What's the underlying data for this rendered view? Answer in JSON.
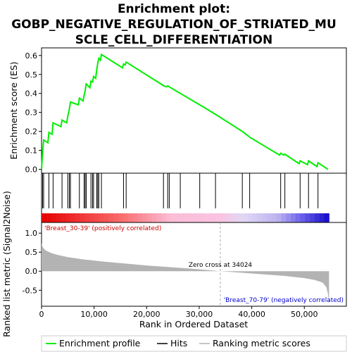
{
  "chart_data": {
    "type": "line",
    "title_lines": [
      "Enrichment plot:",
      "GOBP_NEGATIVE_REGULATION_OF_STRIATED_MU",
      "SCLE_CELL_DIFFERENTIATION"
    ],
    "top_panel": {
      "ylabel": "Enrichment score (ES)",
      "ylim": [
        -0.02,
        0.64
      ],
      "yticks": [
        0.0,
        0.1,
        0.2,
        0.3,
        0.4,
        0.5,
        0.6
      ],
      "ytick_labels": [
        "0.0",
        "0.1",
        "0.2",
        "0.3",
        "0.4",
        "0.5",
        "0.6"
      ],
      "series": [
        {
          "name": "Enrichment profile",
          "color": "#00ee00",
          "x": [
            0,
            200,
            400,
            1200,
            1400,
            2000,
            2200,
            3700,
            3900,
            4800,
            5000,
            5300,
            5500,
            7000,
            7200,
            7900,
            8100,
            8300,
            8500,
            9200,
            9400,
            9700,
            9900,
            10300,
            10500,
            10700,
            10900,
            11200,
            11400,
            15400,
            15600,
            15900,
            16100,
            23000,
            23200,
            23800,
            24000,
            24300,
            26400,
            30100,
            33100,
            38200,
            39400,
            39600,
            45300,
            45500,
            46100,
            46300,
            49000,
            49200,
            50600,
            50800,
            52400,
            52600,
            54500
          ],
          "y": [
            0.0,
            0.09,
            0.155,
            0.14,
            0.195,
            0.185,
            0.245,
            0.225,
            0.26,
            0.245,
            0.28,
            0.32,
            0.355,
            0.34,
            0.375,
            0.36,
            0.39,
            0.415,
            0.45,
            0.43,
            0.465,
            0.46,
            0.49,
            0.48,
            0.525,
            0.56,
            0.585,
            0.575,
            0.605,
            0.535,
            0.555,
            0.55,
            0.565,
            0.445,
            0.44,
            0.435,
            0.44,
            0.435,
            0.4,
            0.34,
            0.29,
            0.2,
            0.175,
            0.17,
            0.075,
            0.085,
            0.075,
            0.08,
            0.03,
            0.045,
            0.025,
            0.045,
            0.015,
            0.035,
            0.0
          ]
        }
      ]
    },
    "hits_panel": {
      "hit_positions": [
        200,
        400,
        1400,
        2200,
        3900,
        5000,
        5300,
        5500,
        7200,
        8100,
        8300,
        8500,
        9400,
        9700,
        9900,
        10500,
        10700,
        10900,
        11400,
        15600,
        16100,
        23200,
        24000,
        24300,
        26400,
        30100,
        33100,
        38200,
        39600,
        45500,
        46300,
        49200,
        50800,
        52600
      ]
    },
    "bottom_panel": {
      "ylabel": "Ranked list metric (Signal2Noise)",
      "xlabel": "Rank in Ordered Dataset",
      "xlim": [
        0,
        58000
      ],
      "xticks": [
        0,
        10000,
        20000,
        30000,
        40000,
        50000
      ],
      "xtick_labels": [
        "0",
        "10,000",
        "20,000",
        "30,000",
        "40,000",
        "50,000"
      ],
      "ylim": [
        -0.92,
        1.28
      ],
      "yticks": [
        1.0,
        0.5,
        0.0,
        -0.5
      ],
      "ytick_labels": [
        "1.0",
        "0.5",
        "0.0",
        "-0.5"
      ],
      "metric_x": [
        0,
        100,
        300,
        600,
        1000,
        2000,
        3000,
        5000,
        8000,
        12000,
        16000,
        20000,
        25000,
        30000,
        34024,
        38000,
        42000,
        46000,
        50000,
        52000,
        53500,
        54200,
        54500,
        54700
      ],
      "metric_y": [
        0.75,
        0.68,
        0.62,
        0.57,
        0.53,
        0.47,
        0.43,
        0.37,
        0.31,
        0.25,
        0.2,
        0.15,
        0.1,
        0.05,
        0.0,
        -0.04,
        -0.08,
        -0.12,
        -0.18,
        -0.23,
        -0.3,
        -0.42,
        -0.6,
        -0.85
      ],
      "fill_color": "#b3b3b3",
      "total": 54700,
      "zero_cross": 34024,
      "zero_cross_label": "Zero cross at 34024",
      "positive_label": "'Breast_30-39' (positively correlated)",
      "negative_label": "'Breast_70-79' (negatively correlated)",
      "positive_color": "#cc0000",
      "negative_color": "#0000cc"
    },
    "legend": {
      "items": [
        {
          "label": "Enrichment profile",
          "color": "#00ee00"
        },
        {
          "label": "Hits",
          "color": "#000000"
        },
        {
          "label": "Ranking metric scores",
          "color": "#b3b3b3"
        }
      ]
    }
  }
}
